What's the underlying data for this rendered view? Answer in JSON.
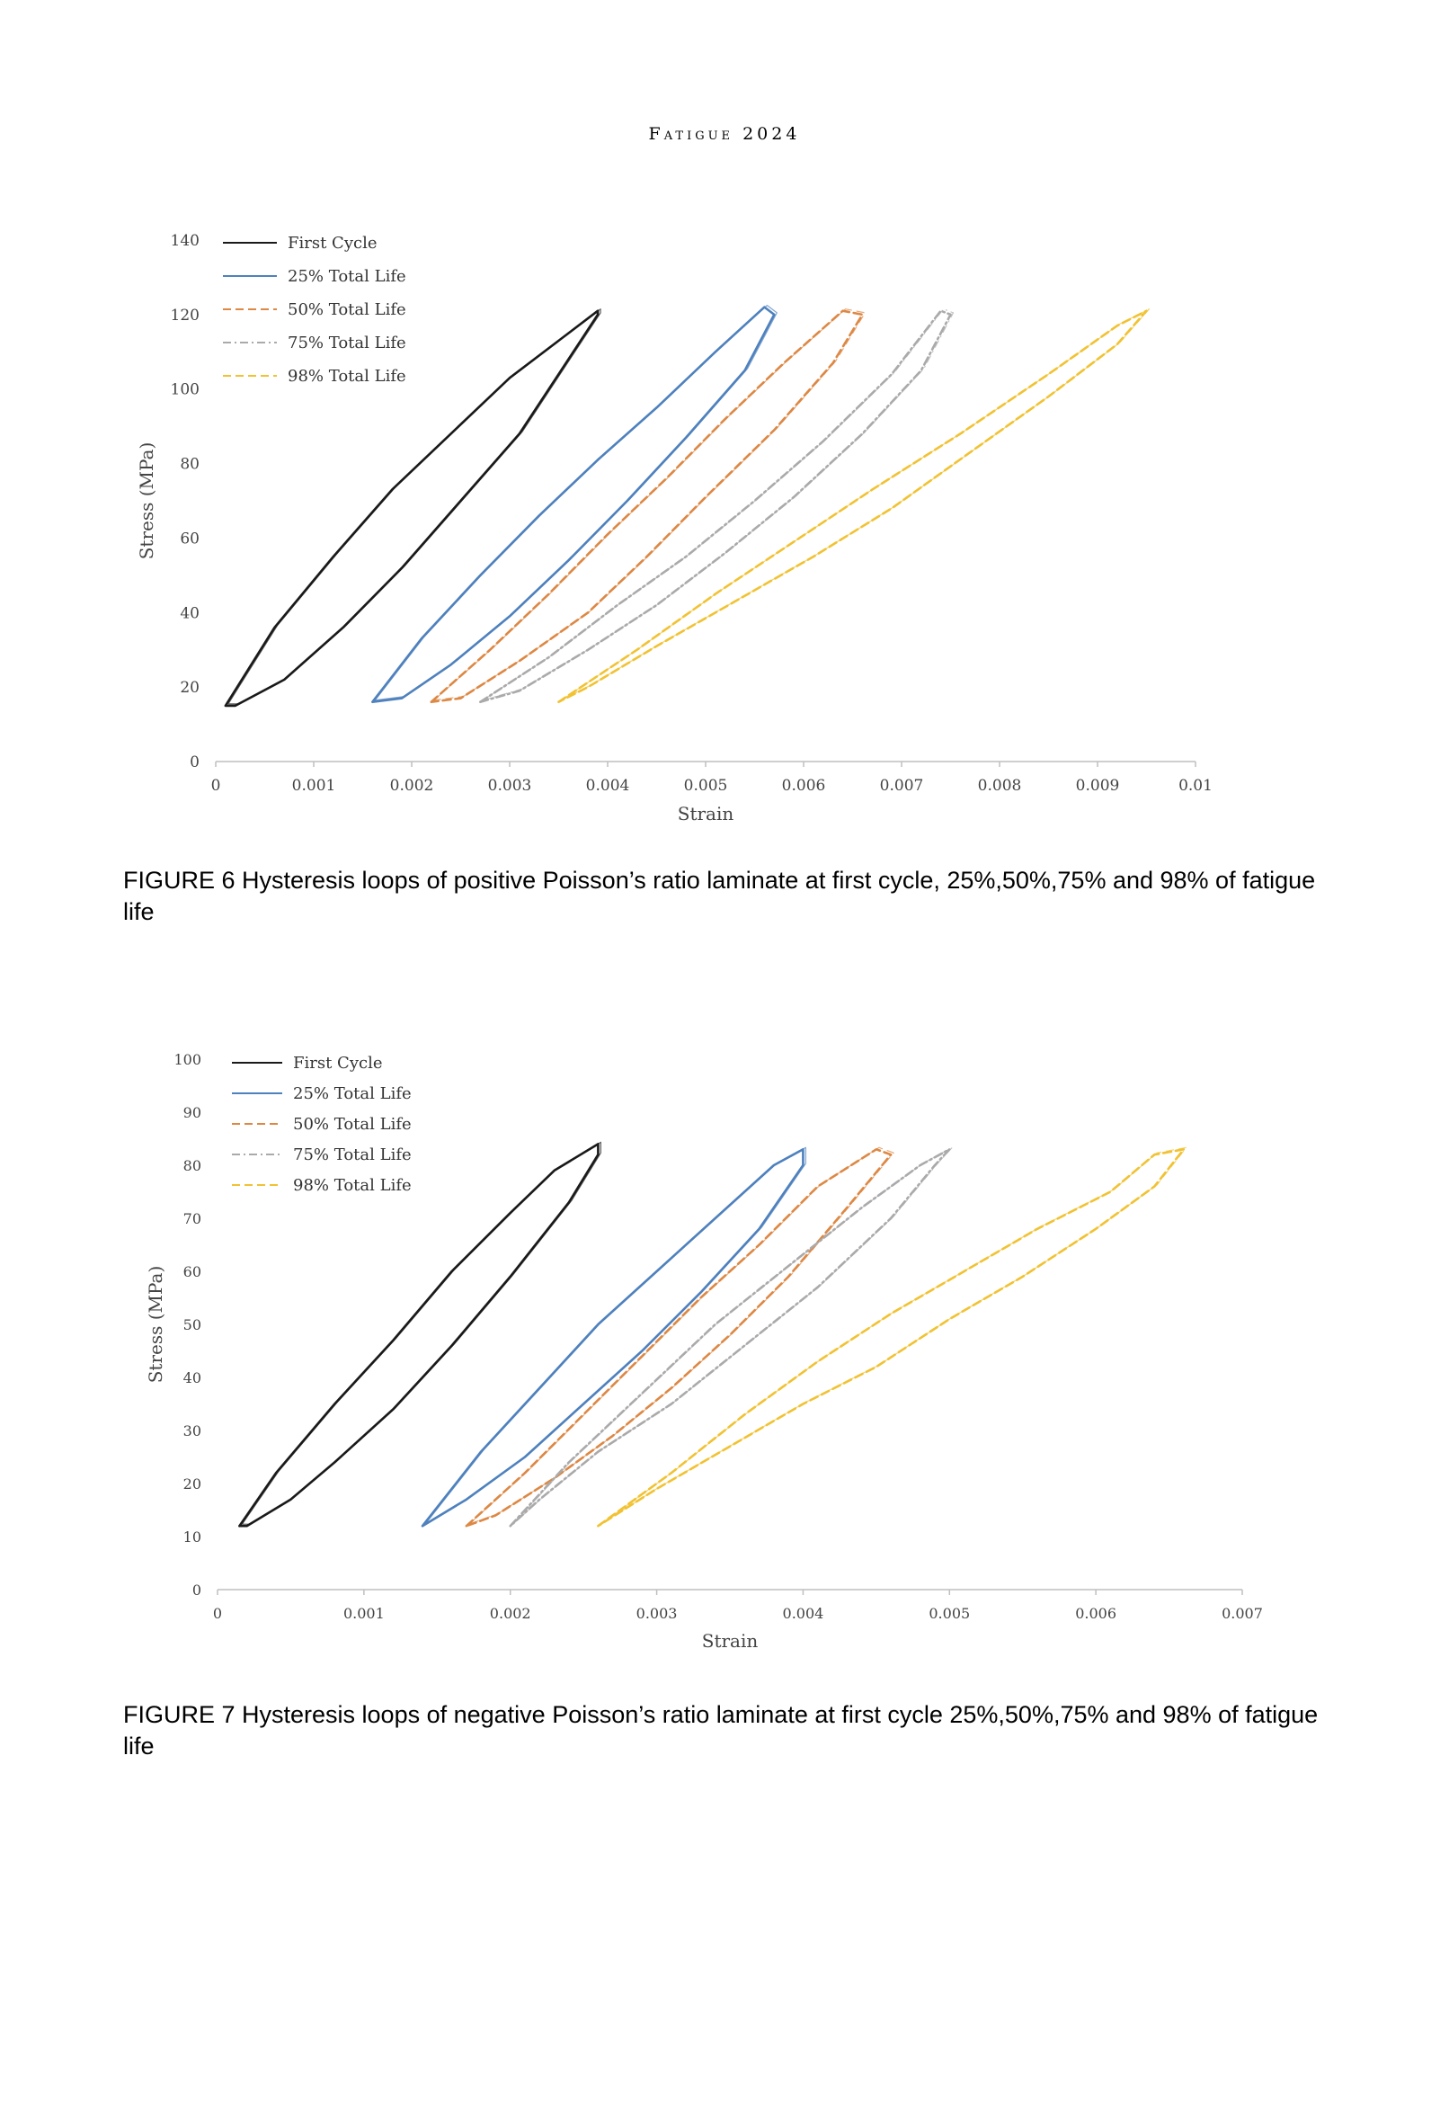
{
  "header": {
    "running_title": "Fatigue 2024"
  },
  "figures": [
    {
      "caption": "FIGURE 6   Hysteresis loops of positive Poisson’s ratio laminate at first cycle, 25%,50%,75% and 98% of fatigue life"
    },
    {
      "caption": "FIGURE 7   Hysteresis loops of negative Poisson’s ratio laminate at first cycle 25%,50%,75% and 98% of fatigue life"
    }
  ],
  "chart_data": [
    {
      "type": "line",
      "title": "",
      "xlabel": "Strain",
      "ylabel": "Stress (MPa)",
      "xlim": [
        0,
        0.01
      ],
      "ylim": [
        0,
        140
      ],
      "xticks": [
        "0",
        "0.001",
        "0.002",
        "0.003",
        "0.004",
        "0.005",
        "0.006",
        "0.007",
        "0.008",
        "0.009",
        "0.01"
      ],
      "yticks": [
        "0",
        "20",
        "40",
        "60",
        "80",
        "100",
        "120",
        "140"
      ],
      "legend_position": "top-left",
      "series": [
        {
          "name": "First Cycle",
          "color": "#1a1a1a",
          "dash": "solid",
          "x": [
            0.0001,
            0.0006,
            0.0012,
            0.0018,
            0.0024,
            0.003,
            0.0035,
            0.0039,
            0.0039,
            0.0036,
            0.0031,
            0.0025,
            0.0019,
            0.0013,
            0.0007,
            0.0002,
            0.0001
          ],
          "y": [
            15,
            36,
            55,
            73,
            88,
            103,
            113,
            121,
            120,
            108,
            88,
            70,
            52,
            36,
            22,
            15,
            15
          ]
        },
        {
          "name": "25% Total Life",
          "color": "#4e81bd",
          "dash": "solid",
          "x": [
            0.0016,
            0.0021,
            0.0027,
            0.0033,
            0.0039,
            0.0045,
            0.0051,
            0.0056,
            0.0057,
            0.0054,
            0.0048,
            0.0042,
            0.0036,
            0.003,
            0.0024,
            0.0019,
            0.0016
          ],
          "y": [
            16,
            33,
            50,
            66,
            81,
            95,
            110,
            122,
            120,
            105,
            87,
            70,
            54,
            39,
            26,
            17,
            16
          ]
        },
        {
          "name": "50% Total Life",
          "color": "#dd8844",
          "dash": "dashed",
          "x": [
            0.0022,
            0.0028,
            0.0034,
            0.004,
            0.0046,
            0.0052,
            0.0058,
            0.0064,
            0.0066,
            0.0063,
            0.0057,
            0.005,
            0.0044,
            0.0038,
            0.0031,
            0.0025,
            0.0022
          ],
          "y": [
            16,
            30,
            45,
            61,
            76,
            92,
            107,
            121,
            120,
            107,
            89,
            71,
            55,
            40,
            27,
            17,
            16
          ]
        },
        {
          "name": "75% Total Life",
          "color": "#aaaaaa",
          "dash": "dashdot",
          "x": [
            0.0027,
            0.0034,
            0.0041,
            0.0048,
            0.0055,
            0.0062,
            0.0069,
            0.0074,
            0.0075,
            0.0072,
            0.0066,
            0.0059,
            0.0052,
            0.0045,
            0.0038,
            0.0031,
            0.0027
          ],
          "y": [
            16,
            28,
            42,
            55,
            70,
            86,
            104,
            121,
            120,
            105,
            88,
            71,
            56,
            42,
            30,
            19,
            16
          ]
        },
        {
          "name": "98% Total Life",
          "color": "#f1c232",
          "dash": "dashed",
          "x": [
            0.0035,
            0.0043,
            0.0051,
            0.0059,
            0.0067,
            0.0076,
            0.0085,
            0.0092,
            0.0095,
            0.0092,
            0.0085,
            0.0077,
            0.0069,
            0.0061,
            0.0053,
            0.0045,
            0.0038,
            0.0035
          ],
          "y": [
            16,
            30,
            45,
            59,
            73,
            88,
            104,
            117,
            121,
            112,
            98,
            83,
            68,
            55,
            43,
            31,
            20,
            16
          ]
        }
      ]
    },
    {
      "type": "line",
      "title": "",
      "xlabel": "Strain",
      "ylabel": "Stress (MPa)",
      "xlim": [
        0,
        0.007
      ],
      "ylim": [
        0,
        100
      ],
      "xticks": [
        "0",
        "0.001",
        "0.002",
        "0.003",
        "0.004",
        "0.005",
        "0.006",
        "0.007"
      ],
      "yticks": [
        "0",
        "10",
        "20",
        "30",
        "40",
        "50",
        "60",
        "70",
        "80",
        "90",
        "100"
      ],
      "legend_position": "top-left",
      "series": [
        {
          "name": "First Cycle",
          "color": "#1a1a1a",
          "dash": "solid",
          "x": [
            0.00015,
            0.0004,
            0.0008,
            0.0012,
            0.0016,
            0.002,
            0.0023,
            0.0026,
            0.0026,
            0.0024,
            0.002,
            0.0016,
            0.0012,
            0.0008,
            0.0005,
            0.0002,
            0.00015
          ],
          "y": [
            12,
            22,
            35,
            47,
            60,
            71,
            79,
            84,
            82,
            73,
            59,
            46,
            34,
            24,
            17,
            12,
            12
          ]
        },
        {
          "name": "25% Total Life",
          "color": "#4e81bd",
          "dash": "solid",
          "x": [
            0.0014,
            0.0018,
            0.0022,
            0.0026,
            0.003,
            0.0034,
            0.0038,
            0.004,
            0.004,
            0.0037,
            0.0033,
            0.0029,
            0.0025,
            0.0021,
            0.0017,
            0.0014
          ],
          "y": [
            12,
            26,
            38,
            50,
            60,
            70,
            80,
            83,
            80,
            68,
            56,
            45,
            35,
            25,
            17,
            12
          ]
        },
        {
          "name": "50% Total Life",
          "color": "#dd8844",
          "dash": "dashed",
          "x": [
            0.0017,
            0.0021,
            0.0025,
            0.0029,
            0.0033,
            0.0037,
            0.0041,
            0.0045,
            0.0046,
            0.0043,
            0.0039,
            0.0035,
            0.0031,
            0.0027,
            0.0023,
            0.0019,
            0.0017
          ],
          "y": [
            12,
            22,
            33,
            44,
            55,
            65,
            76,
            83,
            82,
            72,
            59,
            48,
            38,
            29,
            21,
            14,
            12
          ]
        },
        {
          "name": "75% Total Life",
          "color": "#aaaaaa",
          "dash": "dashdot",
          "x": [
            0.002,
            0.0024,
            0.0029,
            0.0034,
            0.0039,
            0.0044,
            0.0048,
            0.005,
            0.0049,
            0.0046,
            0.0041,
            0.0036,
            0.0031,
            0.0026,
            0.0022,
            0.002
          ],
          "y": [
            12,
            24,
            37,
            50,
            61,
            72,
            80,
            83,
            80,
            70,
            57,
            46,
            35,
            26,
            17,
            12
          ]
        },
        {
          "name": "98% Total Life",
          "color": "#f1c232",
          "dash": "dashed",
          "x": [
            0.0026,
            0.0031,
            0.0036,
            0.0041,
            0.0046,
            0.0051,
            0.0056,
            0.0061,
            0.0064,
            0.0066,
            0.0064,
            0.006,
            0.0055,
            0.005,
            0.0045,
            0.004,
            0.0035,
            0.003,
            0.0026
          ],
          "y": [
            12,
            22,
            33,
            43,
            52,
            60,
            68,
            75,
            82,
            83,
            76,
            68,
            59,
            51,
            42,
            35,
            27,
            19,
            12
          ]
        }
      ]
    }
  ]
}
